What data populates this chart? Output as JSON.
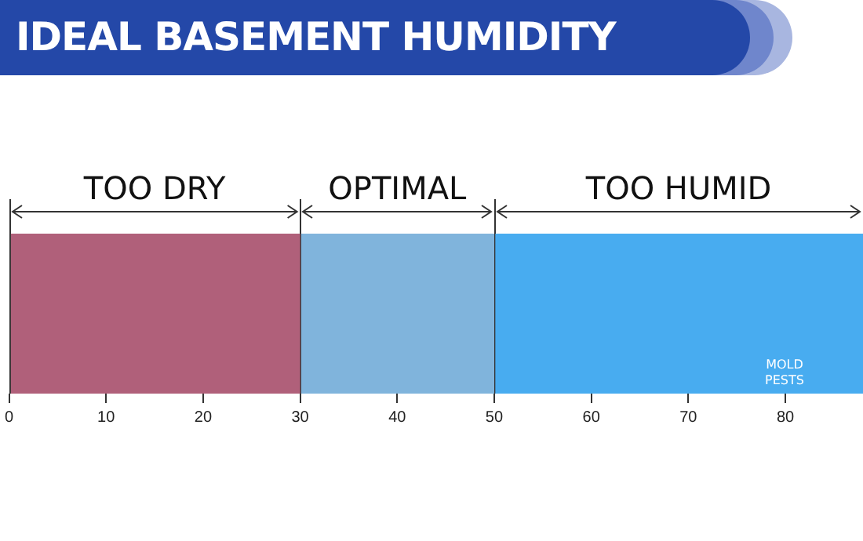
{
  "chart_data": {
    "type": "bar",
    "title": "IDEAL BASEMENT HUMIDITY",
    "orientation": "horizontal",
    "stacked": true,
    "categories": [
      null
    ],
    "xlim": [
      0,
      88
    ],
    "xticks": [
      0,
      10,
      20,
      30,
      40,
      50,
      60,
      70,
      80
    ],
    "series": [
      {
        "name": "TOO DRY",
        "color": "#b0607a",
        "values": [
          30
        ]
      },
      {
        "name": "OPTIMAL",
        "color": "#80b4dc",
        "values": [
          20
        ]
      },
      {
        "name": "TOO HUMID",
        "color": "#48acf0",
        "values": [
          38
        ]
      }
    ],
    "annotations": [
      "MOLD",
      "PESTS"
    ]
  }
}
